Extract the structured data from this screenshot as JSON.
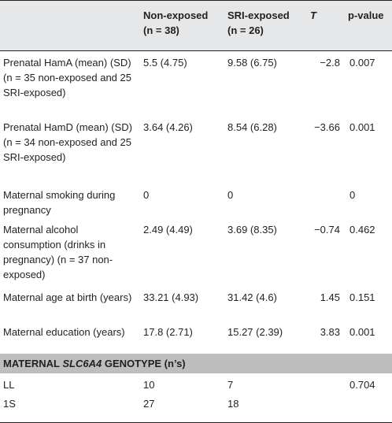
{
  "header": {
    "col_label": "",
    "col_nonexposed_line1": "Non-exposed",
    "col_nonexposed_line2": "(n = 38)",
    "col_sri_line1": "SRI-exposed",
    "col_sri_line2": "(n = 26)",
    "col_t": "T",
    "col_p": "p-value"
  },
  "rows": [
    {
      "label": "Prenatal HamA (mean) (SD) (n = 35 non-exposed and 25 SRI-exposed)",
      "nonexposed": "5.5 (4.75)",
      "sri": "9.58 (6.75)",
      "t": "−2.8",
      "p": "0.007"
    },
    {
      "label": "Prenatal HamD (mean) (SD) (n = 34 non-exposed and 25 SRI-exposed)",
      "nonexposed": "3.64 (4.26)",
      "sri": "8.54 (6.28)",
      "t": "−3.66",
      "p": "0.001"
    },
    {
      "label": "Maternal smoking during pregnancy",
      "nonexposed": "0",
      "sri": "0",
      "t": "",
      "p": "0"
    },
    {
      "label": "Maternal alcohol consumption (drinks in pregnancy) (n = 37 non-exposed)",
      "nonexposed": "2.49 (4.49)",
      "sri": "3.69 (8.35)",
      "t": "−0.74",
      "p": "0.462"
    },
    {
      "label": "Maternal age at birth (years)",
      "nonexposed": "33.21 (4.93)",
      "sri": "31.42 (4.6)",
      "t": "1.45",
      "p": "0.151"
    },
    {
      "label": "Maternal education (years)",
      "nonexposed": "17.8 (2.71)",
      "sri": "15.27 (2.39)",
      "t": "3.83",
      "p": "0.001"
    }
  ],
  "section": {
    "prefix": "MATERNAL ",
    "gene": "SLC6A4",
    "suffix": " GENOTYPE (n’s)"
  },
  "genotype_rows": [
    {
      "label": "LL",
      "nonexposed": "10",
      "sri": "7",
      "t": "",
      "p": "0.704"
    },
    {
      "label": "1S",
      "nonexposed": "27",
      "sri": "18",
      "t": "",
      "p": ""
    }
  ]
}
